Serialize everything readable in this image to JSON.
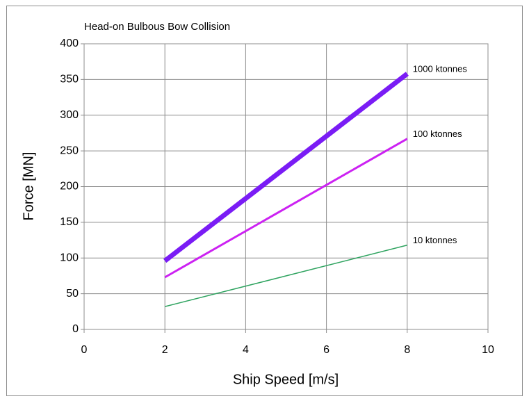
{
  "chart_data": {
    "type": "line",
    "title": "Head-on Bulbous Bow Collision",
    "xlabel": "Ship Speed [m/s]",
    "ylabel": "Force [MN]",
    "x": [
      2,
      8
    ],
    "series": [
      {
        "name": "1000 ktonnes",
        "color": "#7a1cf5",
        "values": [
          96,
          358
        ]
      },
      {
        "name": "100 ktonnes",
        "color": "#cc22f2",
        "values": [
          73,
          267
        ]
      },
      {
        "name": "10 ktonnes",
        "color": "#2ea35f",
        "values": [
          32,
          118
        ]
      }
    ],
    "xlim": [
      0,
      10
    ],
    "xticks": [
      0,
      2,
      4,
      6,
      8,
      10
    ],
    "ylim": [
      0,
      400
    ],
    "yticks": [
      0,
      50,
      100,
      150,
      200,
      250,
      300,
      350,
      400
    ],
    "grid": true
  }
}
